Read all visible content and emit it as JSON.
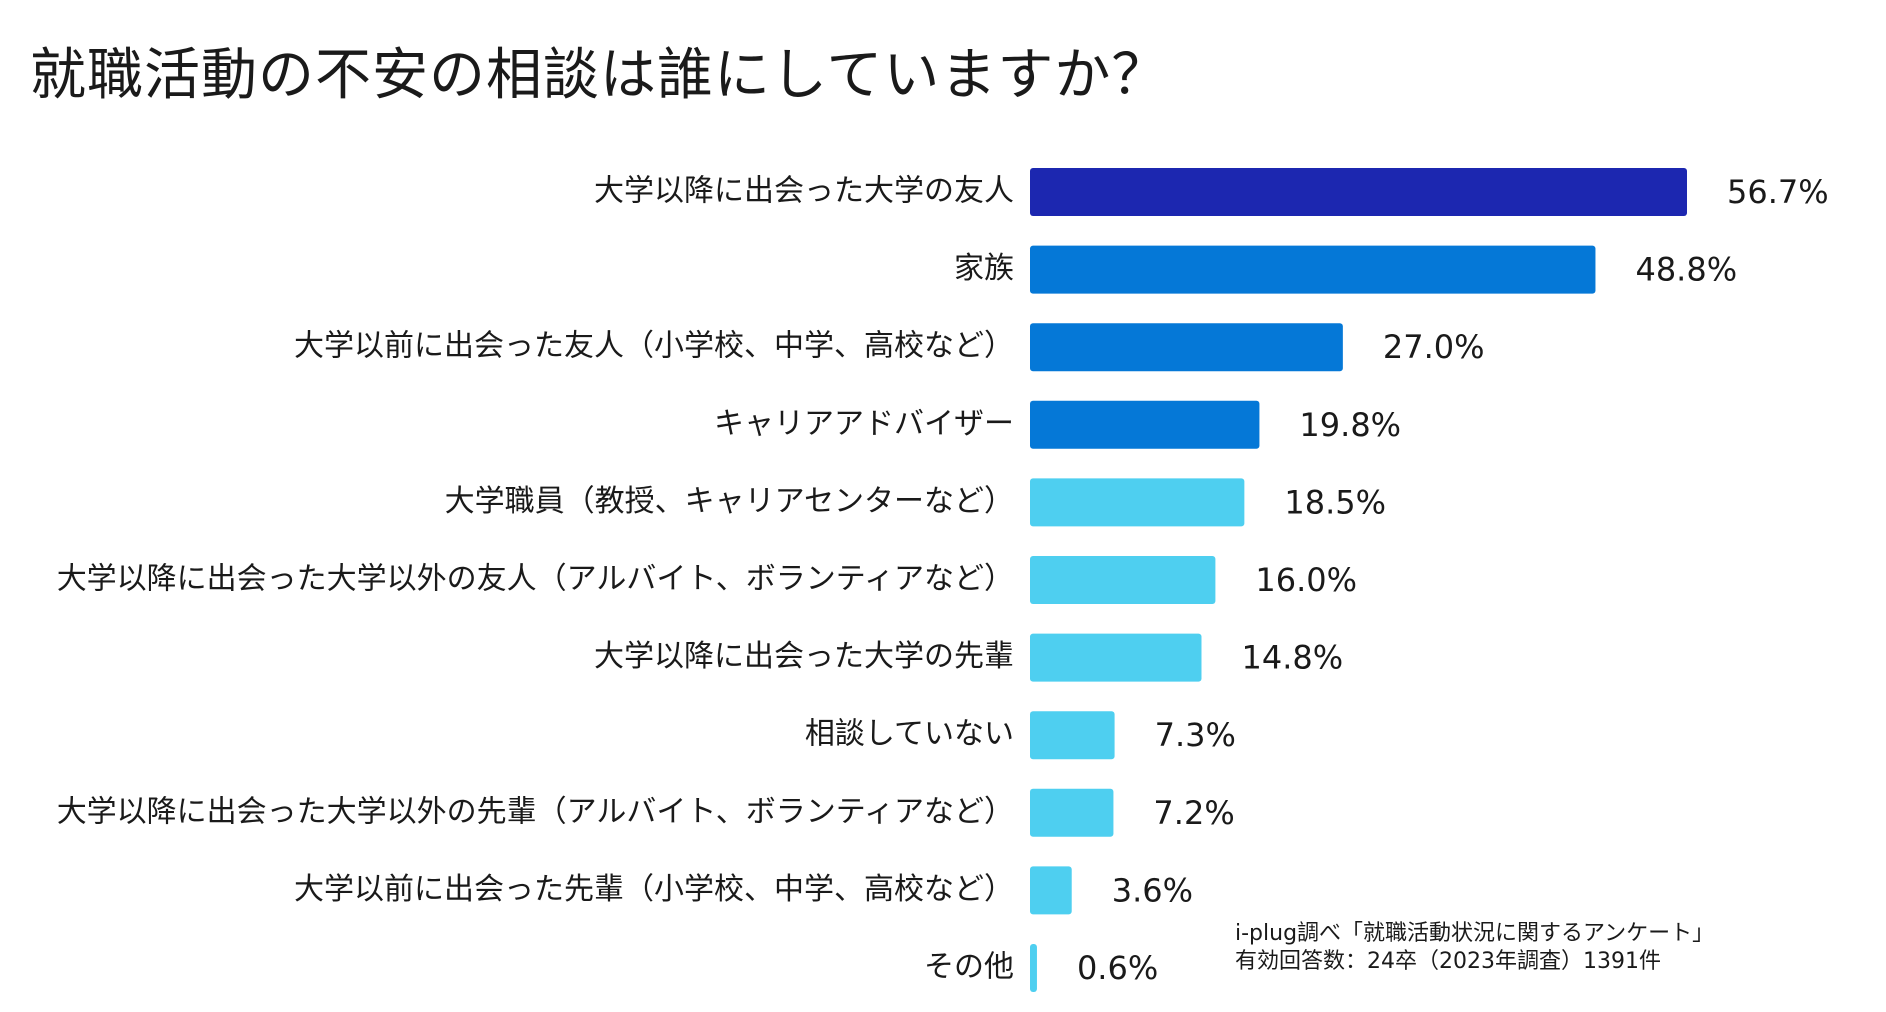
{
  "chart_data": {
    "type": "bar",
    "orientation": "horizontal",
    "title": "就職活動の不安の相談は誰にしていますか？",
    "categories": [
      "大学以降に出会った大学の友人",
      "家族",
      "大学以前に出会った友人（小学校、中学、高校など）",
      "キャリアアドバイザー",
      "大学職員（教授、キャリアセンターなど）",
      "大学以降に出会った大学以外の友人（アルバイト、ボランティアなど）",
      "大学以降に出会った大学の先輩",
      "相談していない",
      "大学以降に出会った大学以外の先輩（アルバイト、ボランティアなど）",
      "大学以前に出会った先輩（小学校、中学、高校など）",
      "その他"
    ],
    "values": [
      56.7,
      48.8,
      27.0,
      19.8,
      18.5,
      16.0,
      14.8,
      7.3,
      7.2,
      3.6,
      0.6
    ],
    "value_labels": [
      "56.7%",
      "48.8%",
      "27.0%",
      "19.8%",
      "18.5%",
      "16.0%",
      "14.8%",
      "7.3%",
      "7.2%",
      "3.6%",
      "0.6%"
    ],
    "colors": [
      "#1c27b0",
      "#0578d7",
      "#0578d7",
      "#0578d7",
      "#4ecff0",
      "#4ecff0",
      "#4ecff0",
      "#4ecff0",
      "#4ecff0",
      "#4ecff0",
      "#4ecff0"
    ],
    "xlim": [
      0,
      56.7
    ],
    "xlabel": "",
    "ylabel": "",
    "grid": false,
    "legend": "none"
  },
  "source": {
    "line1": "i-plug調べ「就職活動状況に関する​アンケート」",
    "line2": "有効回答数：24卒（2023年調査）1391件"
  }
}
